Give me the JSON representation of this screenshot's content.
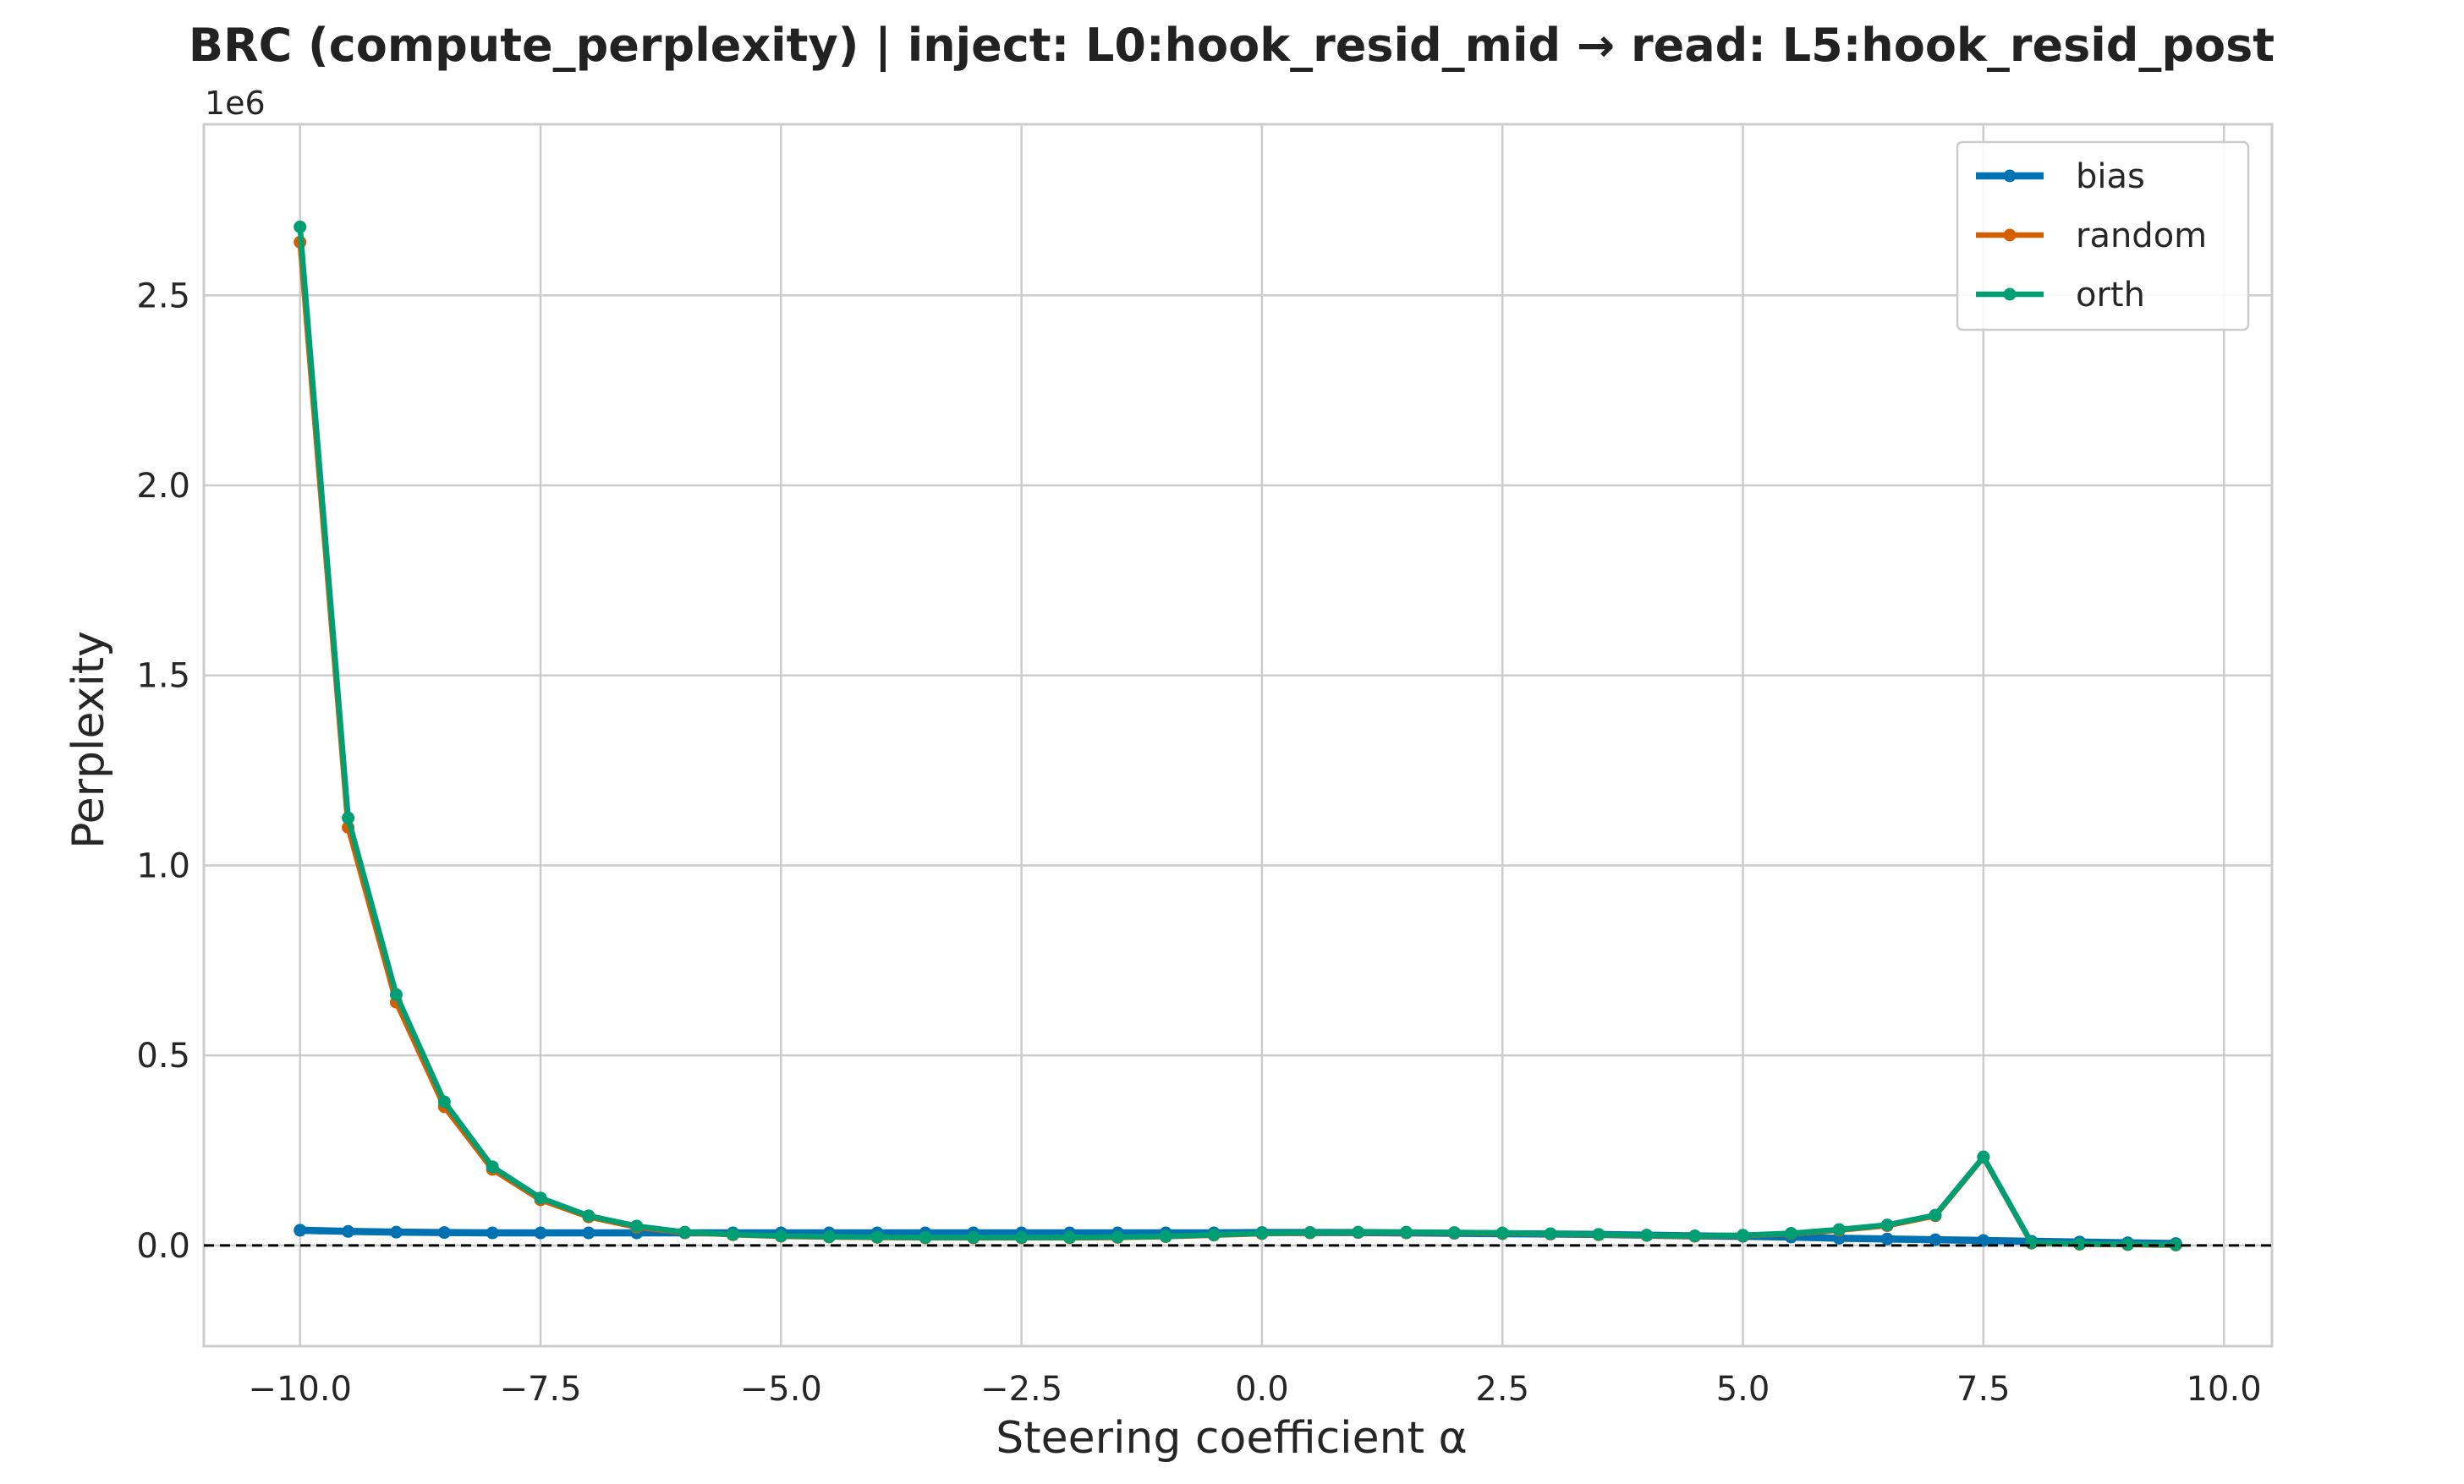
{
  "chart_data": {
    "type": "line",
    "title": "BRC (compute_perplexity) | inject: L0:hook_resid_mid → read: L5:hook_resid_post",
    "xlabel": "Steering coefficient α",
    "ylabel": "Perplexity",
    "y_offset_label": "1e6",
    "y_scale": 1000000,
    "xlim": [
      -11.0,
      10.5
    ],
    "ylim": [
      -265000,
      2950000
    ],
    "xticks": [
      -10.0,
      -7.5,
      -5.0,
      -2.5,
      0.0,
      2.5,
      5.0,
      7.5,
      10.0
    ],
    "xtick_labels": [
      "−10.0",
      "−7.5",
      "−5.0",
      "−2.5",
      "0.0",
      "2.5",
      "5.0",
      "7.5",
      "10.0"
    ],
    "yticks": [
      0,
      500000,
      1000000,
      1500000,
      2000000,
      2500000
    ],
    "ytick_labels": [
      "0.0",
      "0.5",
      "1.0",
      "1.5",
      "2.0",
      "2.5"
    ],
    "grid": true,
    "reference_line_y": 0,
    "legend_position": "top-right",
    "x": [
      -10.0,
      -9.5,
      -9.0,
      -8.5,
      -8.0,
      -7.5,
      -7.0,
      -6.5,
      -6.0,
      -5.5,
      -5.0,
      -4.5,
      -4.0,
      -3.5,
      -3.0,
      -2.5,
      -2.0,
      -1.5,
      -1.0,
      -0.5,
      0.0,
      0.5,
      1.0,
      1.5,
      2.0,
      2.5,
      3.0,
      3.5,
      4.0,
      4.5,
      5.0,
      5.5,
      6.0,
      6.5,
      7.0,
      7.5,
      8.0,
      8.5,
      9.0,
      9.5
    ],
    "series": [
      {
        "name": "bias",
        "color": "#0072b2",
        "width": 8.5,
        "values": [
          40000,
          37000,
          35000,
          34000,
          33000,
          33000,
          33000,
          33000,
          33000,
          33000,
          33000,
          33000,
          33000,
          33000,
          33000,
          33000,
          33000,
          33000,
          33000,
          33000,
          34000,
          34000,
          34000,
          33000,
          32000,
          31000,
          30000,
          29000,
          27000,
          25000,
          24000,
          22000,
          19000,
          17000,
          15000,
          13000,
          11000,
          9000,
          7000,
          5000
        ]
      },
      {
        "name": "random",
        "color": "#d55e00",
        "width": 6.5,
        "values": [
          2640000,
          1100000,
          640000,
          365000,
          200000,
          120000,
          75000,
          48000,
          34000,
          28000,
          24000,
          22000,
          21000,
          20000,
          20000,
          20000,
          20000,
          21000,
          23000,
          27000,
          31000,
          33000,
          34000,
          34000,
          33000,
          32000,
          30000,
          28000,
          26000,
          24000,
          26000,
          31000,
          40000,
          52000,
          78000,
          232000,
          6000,
          3000,
          2000,
          1000
        ]
      },
      {
        "name": "orth",
        "color": "#009e73",
        "width": 6.5,
        "values": [
          2680000,
          1125000,
          660000,
          378000,
          207000,
          125000,
          78000,
          51000,
          35000,
          29000,
          25000,
          23000,
          22000,
          21000,
          21000,
          21000,
          21000,
          22000,
          24000,
          28000,
          32000,
          34000,
          35000,
          35000,
          34000,
          33000,
          31000,
          29000,
          27000,
          25000,
          27000,
          32000,
          42000,
          54000,
          80000,
          233000,
          7000,
          4000,
          3000,
          2000
        ]
      }
    ]
  }
}
